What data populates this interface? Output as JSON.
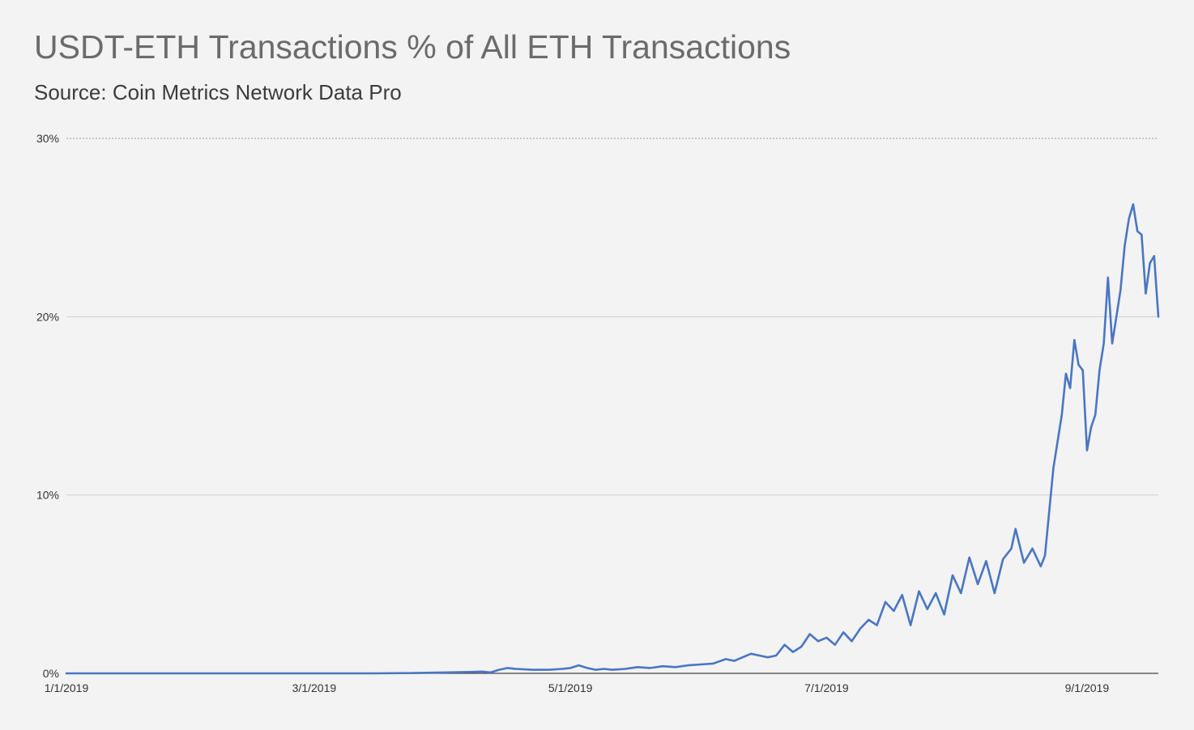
{
  "header": {
    "title": "USDT-ETH Transactions % of All ETH Transactions",
    "subtitle": "Source: Coin Metrics Network Data Pro"
  },
  "colors": {
    "background": "#f3f3f3",
    "line": "#4a76c2",
    "grid": "#d0d0d0",
    "axis": "#444444",
    "text": "#333333"
  },
  "chart_data": {
    "type": "line",
    "title": "USDT-ETH Transactions % of All ETH Transactions",
    "subtitle": "Source: Coin Metrics Network Data Pro",
    "xlabel": "",
    "ylabel": "",
    "x_range": [
      "2019-01-01",
      "2019-09-14"
    ],
    "ylim": [
      0,
      30
    ],
    "y_ticks": [
      0,
      10,
      20,
      30
    ],
    "y_tick_labels": [
      "0%",
      "10%",
      "20%",
      "30%"
    ],
    "x_ticks": [
      "2019-01-01",
      "2019-03-01",
      "2019-05-01",
      "2019-07-01",
      "2019-09-01"
    ],
    "x_tick_labels": [
      "1/1/2019",
      "3/1/2019",
      "5/1/2019",
      "7/1/2019",
      "9/1/2019"
    ],
    "grid": "horizontal",
    "series": [
      {
        "values": [
          [
            "2019-01-01",
            0.0
          ],
          [
            "2019-01-15",
            0.0
          ],
          [
            "2019-02-01",
            0.0
          ],
          [
            "2019-02-15",
            0.0
          ],
          [
            "2019-03-01",
            0.0
          ],
          [
            "2019-03-15",
            0.0
          ],
          [
            "2019-03-25",
            0.02
          ],
          [
            "2019-04-01",
            0.05
          ],
          [
            "2019-04-08",
            0.08
          ],
          [
            "2019-04-10",
            0.1
          ],
          [
            "2019-04-12",
            0.05
          ],
          [
            "2019-04-14",
            0.2
          ],
          [
            "2019-04-16",
            0.3
          ],
          [
            "2019-04-18",
            0.25
          ],
          [
            "2019-04-22",
            0.2
          ],
          [
            "2019-04-26",
            0.2
          ],
          [
            "2019-04-29",
            0.25
          ],
          [
            "2019-05-01",
            0.3
          ],
          [
            "2019-05-03",
            0.45
          ],
          [
            "2019-05-05",
            0.3
          ],
          [
            "2019-05-07",
            0.2
          ],
          [
            "2019-05-09",
            0.25
          ],
          [
            "2019-05-11",
            0.2
          ],
          [
            "2019-05-14",
            0.25
          ],
          [
            "2019-05-17",
            0.35
          ],
          [
            "2019-05-20",
            0.3
          ],
          [
            "2019-05-23",
            0.4
          ],
          [
            "2019-05-26",
            0.35
          ],
          [
            "2019-05-29",
            0.45
          ],
          [
            "2019-06-01",
            0.5
          ],
          [
            "2019-06-04",
            0.55
          ],
          [
            "2019-06-07",
            0.8
          ],
          [
            "2019-06-09",
            0.7
          ],
          [
            "2019-06-11",
            0.9
          ],
          [
            "2019-06-13",
            1.1
          ],
          [
            "2019-06-15",
            1.0
          ],
          [
            "2019-06-17",
            0.9
          ],
          [
            "2019-06-19",
            1.0
          ],
          [
            "2019-06-21",
            1.6
          ],
          [
            "2019-06-23",
            1.2
          ],
          [
            "2019-06-25",
            1.5
          ],
          [
            "2019-06-27",
            2.2
          ],
          [
            "2019-06-29",
            1.8
          ],
          [
            "2019-07-01",
            2.0
          ],
          [
            "2019-07-03",
            1.6
          ],
          [
            "2019-07-05",
            2.3
          ],
          [
            "2019-07-07",
            1.8
          ],
          [
            "2019-07-09",
            2.5
          ],
          [
            "2019-07-11",
            3.0
          ],
          [
            "2019-07-13",
            2.7
          ],
          [
            "2019-07-15",
            4.0
          ],
          [
            "2019-07-17",
            3.5
          ],
          [
            "2019-07-19",
            4.4
          ],
          [
            "2019-07-21",
            2.7
          ],
          [
            "2019-07-23",
            4.6
          ],
          [
            "2019-07-25",
            3.6
          ],
          [
            "2019-07-27",
            4.5
          ],
          [
            "2019-07-29",
            3.3
          ],
          [
            "2019-07-31",
            5.5
          ],
          [
            "2019-08-02",
            4.5
          ],
          [
            "2019-08-04",
            6.5
          ],
          [
            "2019-08-06",
            5.0
          ],
          [
            "2019-08-08",
            6.3
          ],
          [
            "2019-08-10",
            4.5
          ],
          [
            "2019-08-12",
            6.4
          ],
          [
            "2019-08-14",
            7.0
          ],
          [
            "2019-08-15",
            8.1
          ],
          [
            "2019-08-17",
            6.2
          ],
          [
            "2019-08-19",
            7.0
          ],
          [
            "2019-08-21",
            6.0
          ],
          [
            "2019-08-22",
            6.6
          ],
          [
            "2019-08-24",
            11.5
          ],
          [
            "2019-08-26",
            14.5
          ],
          [
            "2019-08-27",
            16.8
          ],
          [
            "2019-08-28",
            16.0
          ],
          [
            "2019-08-29",
            18.7
          ],
          [
            "2019-08-30",
            17.3
          ],
          [
            "2019-08-31",
            17.0
          ],
          [
            "2019-09-01",
            12.5
          ],
          [
            "2019-09-02",
            13.8
          ],
          [
            "2019-09-03",
            14.5
          ],
          [
            "2019-09-04",
            17.0
          ],
          [
            "2019-09-05",
            18.5
          ],
          [
            "2019-09-06",
            22.2
          ],
          [
            "2019-09-07",
            18.5
          ],
          [
            "2019-09-08",
            20.0
          ],
          [
            "2019-09-09",
            21.5
          ],
          [
            "2019-09-10",
            24.0
          ],
          [
            "2019-09-11",
            25.5
          ],
          [
            "2019-09-12",
            26.3
          ],
          [
            "2019-09-13",
            24.8
          ],
          [
            "2019-09-14",
            24.6
          ],
          [
            "2019-09-15",
            21.3
          ],
          [
            "2019-09-16",
            23.0
          ],
          [
            "2019-09-17",
            23.4
          ],
          [
            "2019-09-18",
            20.0
          ]
        ]
      }
    ]
  }
}
